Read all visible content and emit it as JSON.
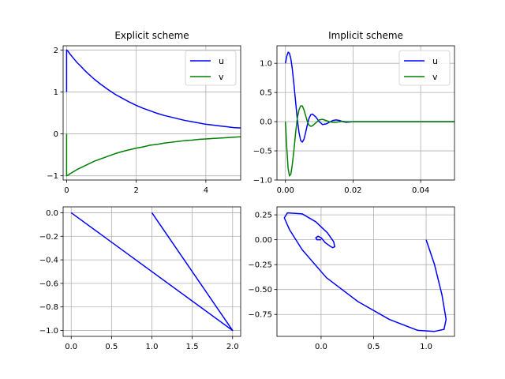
{
  "chart_data": [
    {
      "type": "line",
      "title": "Explicit scheme",
      "xlabel": "",
      "ylabel": "",
      "xlim": [
        -0.1,
        5.0
      ],
      "ylim": [
        -1.1,
        2.1
      ],
      "xticks": [
        0,
        2,
        4
      ],
      "yticks": [
        -1,
        0,
        1,
        2
      ],
      "grid": true,
      "legend": "top-right",
      "series": [
        {
          "name": "u",
          "color": "#0000ff",
          "x": [
            0,
            0.0,
            0.05,
            0.1,
            0.2,
            0.3,
            0.4,
            0.5,
            0.6,
            0.8,
            1.0,
            1.2,
            1.4,
            1.6,
            1.8,
            2.0,
            2.2,
            2.4,
            2.6,
            2.8,
            3.0,
            3.2,
            3.4,
            3.6,
            3.8,
            4.0,
            4.2,
            4.4,
            4.6,
            4.8,
            5.0
          ],
          "y": [
            1,
            2,
            1.96,
            1.9,
            1.8,
            1.7,
            1.62,
            1.53,
            1.45,
            1.3,
            1.17,
            1.05,
            0.94,
            0.85,
            0.76,
            0.68,
            0.61,
            0.55,
            0.49,
            0.44,
            0.4,
            0.36,
            0.32,
            0.29,
            0.26,
            0.23,
            0.21,
            0.19,
            0.17,
            0.15,
            0.14
          ]
        },
        {
          "name": "v",
          "color": "#008000",
          "x": [
            0,
            0.0,
            0.05,
            0.1,
            0.2,
            0.3,
            0.4,
            0.5,
            0.6,
            0.8,
            1.0,
            1.2,
            1.4,
            1.6,
            1.8,
            2.0,
            2.2,
            2.4,
            2.6,
            2.8,
            3.0,
            3.2,
            3.4,
            3.6,
            3.8,
            4.0,
            4.2,
            4.4,
            4.6,
            4.8,
            5.0
          ],
          "y": [
            0,
            -1,
            -0.98,
            -0.95,
            -0.9,
            -0.85,
            -0.81,
            -0.77,
            -0.73,
            -0.65,
            -0.59,
            -0.53,
            -0.47,
            -0.42,
            -0.38,
            -0.34,
            -0.31,
            -0.27,
            -0.25,
            -0.22,
            -0.2,
            -0.18,
            -0.16,
            -0.15,
            -0.13,
            -0.12,
            -0.11,
            -0.1,
            -0.09,
            -0.08,
            -0.07
          ]
        }
      ]
    },
    {
      "type": "line",
      "title": "Implicit scheme",
      "xlabel": "",
      "ylabel": "",
      "xlim": [
        -0.0025,
        0.05
      ],
      "ylim": [
        -1.0,
        1.3
      ],
      "xticks": [
        0.0,
        0.02,
        0.04
      ],
      "xtick_labels": [
        "0.00",
        "0.02",
        "0.04"
      ],
      "yticks": [
        -1.0,
        -0.5,
        0.0,
        0.5,
        1.0
      ],
      "ytick_labels": [
        "−1.0",
        "−0.5",
        "0.0",
        "0.5",
        "1.0"
      ],
      "grid": true,
      "legend": "top-right",
      "series": [
        {
          "name": "u",
          "color": "#0000ff",
          "x": [
            0,
            0.0004,
            0.0008,
            0.0012,
            0.0016,
            0.002,
            0.0025,
            0.003,
            0.0035,
            0.004,
            0.0045,
            0.005,
            0.0055,
            0.006,
            0.0065,
            0.007,
            0.0075,
            0.008,
            0.009,
            0.01,
            0.011,
            0.012,
            0.013,
            0.014,
            0.015,
            0.016,
            0.017,
            0.018,
            0.019,
            0.02,
            0.022,
            0.025,
            0.03,
            0.04,
            0.05
          ],
          "y": [
            1.0,
            1.12,
            1.19,
            1.17,
            1.08,
            0.92,
            0.65,
            0.35,
            0.05,
            -0.18,
            -0.32,
            -0.35,
            -0.3,
            -0.18,
            -0.05,
            0.06,
            0.12,
            0.13,
            0.08,
            0.0,
            -0.05,
            -0.04,
            -0.01,
            0.02,
            0.03,
            0.02,
            0.0,
            -0.01,
            -0.005,
            0.0,
            0.0,
            0.0,
            0.0,
            0.0,
            0.0
          ]
        },
        {
          "name": "v",
          "color": "#008000",
          "x": [
            0,
            0.0004,
            0.0008,
            0.0012,
            0.0016,
            0.002,
            0.0025,
            0.003,
            0.0035,
            0.004,
            0.0045,
            0.005,
            0.0055,
            0.006,
            0.0065,
            0.007,
            0.0075,
            0.008,
            0.009,
            0.01,
            0.011,
            0.012,
            0.013,
            0.014,
            0.015,
            0.016,
            0.017,
            0.018,
            0.019,
            0.02,
            0.022,
            0.025,
            0.03,
            0.04,
            0.05
          ],
          "y": [
            0.0,
            -0.45,
            -0.8,
            -0.93,
            -0.9,
            -0.75,
            -0.5,
            -0.2,
            0.05,
            0.2,
            0.27,
            0.27,
            0.2,
            0.1,
            0.0,
            -0.06,
            -0.08,
            -0.07,
            -0.02,
            0.03,
            0.04,
            0.02,
            0.0,
            -0.01,
            -0.01,
            0.0,
            0.005,
            0.0,
            0.0,
            0.0,
            0.0,
            0.0,
            0.0,
            0.0,
            0.0
          ]
        }
      ]
    },
    {
      "type": "line",
      "title": "",
      "xlabel": "",
      "ylabel": "",
      "xlim": [
        -0.1,
        2.1
      ],
      "ylim": [
        -1.05,
        0.05
      ],
      "xticks": [
        0.0,
        0.5,
        1.0,
        1.5,
        2.0
      ],
      "xtick_labels": [
        "0.0",
        "0.5",
        "1.0",
        "1.5",
        "2.0"
      ],
      "yticks": [
        -1.0,
        -0.8,
        -0.6,
        -0.4,
        -0.2,
        0.0
      ],
      "ytick_labels": [
        "−1.0",
        "−0.8",
        "−0.6",
        "−0.4",
        "−0.2",
        "0.0"
      ],
      "grid": true,
      "series": [
        {
          "color": "#0000ff",
          "x": [
            1.0,
            2.0,
            0.0
          ],
          "y": [
            0.0,
            -1.0,
            0.0
          ]
        }
      ]
    },
    {
      "type": "line",
      "title": "",
      "xlabel": "",
      "ylabel": "",
      "xlim": [
        -0.42,
        1.27
      ],
      "ylim": [
        -0.97,
        0.33
      ],
      "xticks": [
        0.0,
        0.5,
        1.0
      ],
      "xtick_labels": [
        "0.0",
        "0.5",
        "1.0"
      ],
      "yticks": [
        -0.75,
        -0.5,
        -0.25,
        0.0,
        0.25
      ],
      "ytick_labels": [
        "−0.75",
        "−0.50",
        "−0.25",
        "0.00",
        "0.25"
      ],
      "grid": true,
      "series": [
        {
          "color": "#0000ff",
          "x": [
            1.0,
            1.08,
            1.15,
            1.19,
            1.17,
            1.08,
            0.92,
            0.65,
            0.35,
            0.05,
            -0.18,
            -0.3,
            -0.35,
            -0.32,
            -0.18,
            -0.05,
            0.06,
            0.12,
            0.13,
            0.11,
            0.08,
            0.04,
            0.0,
            -0.03,
            -0.05,
            -0.04,
            0.0
          ],
          "y": [
            0.0,
            -0.25,
            -0.55,
            -0.8,
            -0.9,
            -0.92,
            -0.91,
            -0.8,
            -0.62,
            -0.38,
            -0.1,
            0.1,
            0.22,
            0.27,
            0.26,
            0.18,
            0.07,
            -0.02,
            -0.07,
            -0.08,
            -0.06,
            -0.03,
            0.02,
            0.035,
            0.02,
            0.0,
            0.0
          ]
        }
      ]
    }
  ]
}
